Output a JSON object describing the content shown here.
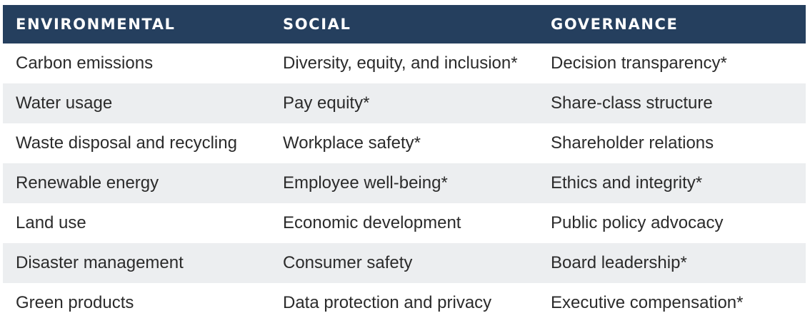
{
  "table": {
    "headers": [
      "ENVIRONMENTAL",
      "SOCIAL",
      "GOVERNANCE"
    ],
    "rows": [
      [
        "Carbon emissions",
        "Diversity, equity, and inclusion*",
        "Decision transparency*"
      ],
      [
        "Water usage",
        "Pay equity*",
        "Share-class structure"
      ],
      [
        "Waste disposal and recycling",
        "Workplace safety*",
        "Shareholder relations"
      ],
      [
        "Renewable energy",
        "Employee well-being*",
        "Ethics and integrity*"
      ],
      [
        "Land use",
        "Economic development",
        "Public policy advocacy"
      ],
      [
        "Disaster management",
        "Consumer safety",
        "Board leadership*"
      ],
      [
        "Green products",
        "Data protection and privacy",
        "Executive compensation*"
      ]
    ]
  },
  "colors": {
    "header_bg": "#253f5e",
    "header_text": "#ffffff",
    "stripe_bg": "#eceef0",
    "body_text": "#2b2b2b"
  }
}
